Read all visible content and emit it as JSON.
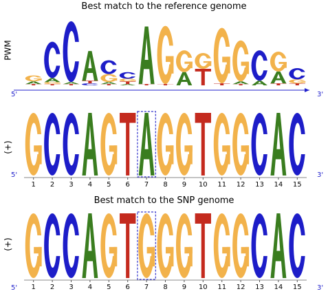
{
  "colors": {
    "A": "#3a7d1f",
    "C": "#1d1dc8",
    "G": "#f2b24b",
    "T": "#c42a1e",
    "ends": "#2222cc"
  },
  "titles": {
    "reference": "Best match to the reference genome",
    "snp": "Best match to the SNP genome"
  },
  "labels": {
    "pwm": "PWM",
    "plus_ref": "(+)",
    "plus_snp": "(+)",
    "five_prime": "5'",
    "three_prime": "3'"
  },
  "positions": [
    "1",
    "2",
    "3",
    "4",
    "5",
    "6",
    "7",
    "8",
    "9",
    "10",
    "11",
    "12",
    "13",
    "14",
    "15"
  ],
  "reference_sequence": [
    "G",
    "C",
    "C",
    "A",
    "G",
    "T",
    "A",
    "G",
    "G",
    "T",
    "G",
    "G",
    "C",
    "A",
    "C"
  ],
  "snp_sequence": [
    "G",
    "C",
    "C",
    "A",
    "G",
    "T",
    "G",
    "G",
    "G",
    "T",
    "G",
    "G",
    "C",
    "A",
    "C"
  ],
  "highlight_position": 7,
  "pwm_logo": [
    [
      [
        "T",
        0.02
      ],
      [
        "A",
        0.04
      ],
      [
        "G",
        0.09
      ]
    ],
    [
      [
        "T",
        0.02
      ],
      [
        "G",
        0.03
      ],
      [
        "A",
        0.06
      ],
      [
        "C",
        0.55
      ]
    ],
    [
      [
        "T",
        0.02
      ],
      [
        "A",
        0.03
      ],
      [
        "C",
        0.92
      ]
    ],
    [
      [
        "C",
        0.03
      ],
      [
        "T",
        0.04
      ],
      [
        "A",
        0.45
      ]
    ],
    [
      [
        "T",
        0.02
      ],
      [
        "A",
        0.03
      ],
      [
        "G",
        0.12
      ],
      [
        "C",
        0.21
      ]
    ],
    [
      [
        "A",
        0.02
      ],
      [
        "T",
        0.04
      ],
      [
        "G",
        0.04
      ],
      [
        "C",
        0.1
      ]
    ],
    [
      [
        "T",
        0.02
      ],
      [
        "A",
        0.87
      ]
    ],
    [
      [
        "T",
        0.02
      ],
      [
        "G",
        0.88
      ]
    ],
    [
      [
        "A",
        0.2
      ],
      [
        "G",
        0.33
      ]
    ],
    [
      [
        "T",
        0.25
      ],
      [
        "G",
        0.24
      ]
    ],
    [
      [
        "T",
        0.03
      ],
      [
        "G",
        0.84
      ]
    ],
    [
      [
        "T",
        0.02
      ],
      [
        "A",
        0.04
      ],
      [
        "G",
        0.62
      ]
    ],
    [
      [
        "A",
        0.07
      ],
      [
        "C",
        0.46
      ]
    ],
    [
      [
        "T",
        0.03
      ],
      [
        "A",
        0.18
      ],
      [
        "G",
        0.3
      ]
    ],
    [
      [
        "T",
        0.03
      ],
      [
        "G",
        0.06
      ],
      [
        "C",
        0.17
      ]
    ]
  ]
}
